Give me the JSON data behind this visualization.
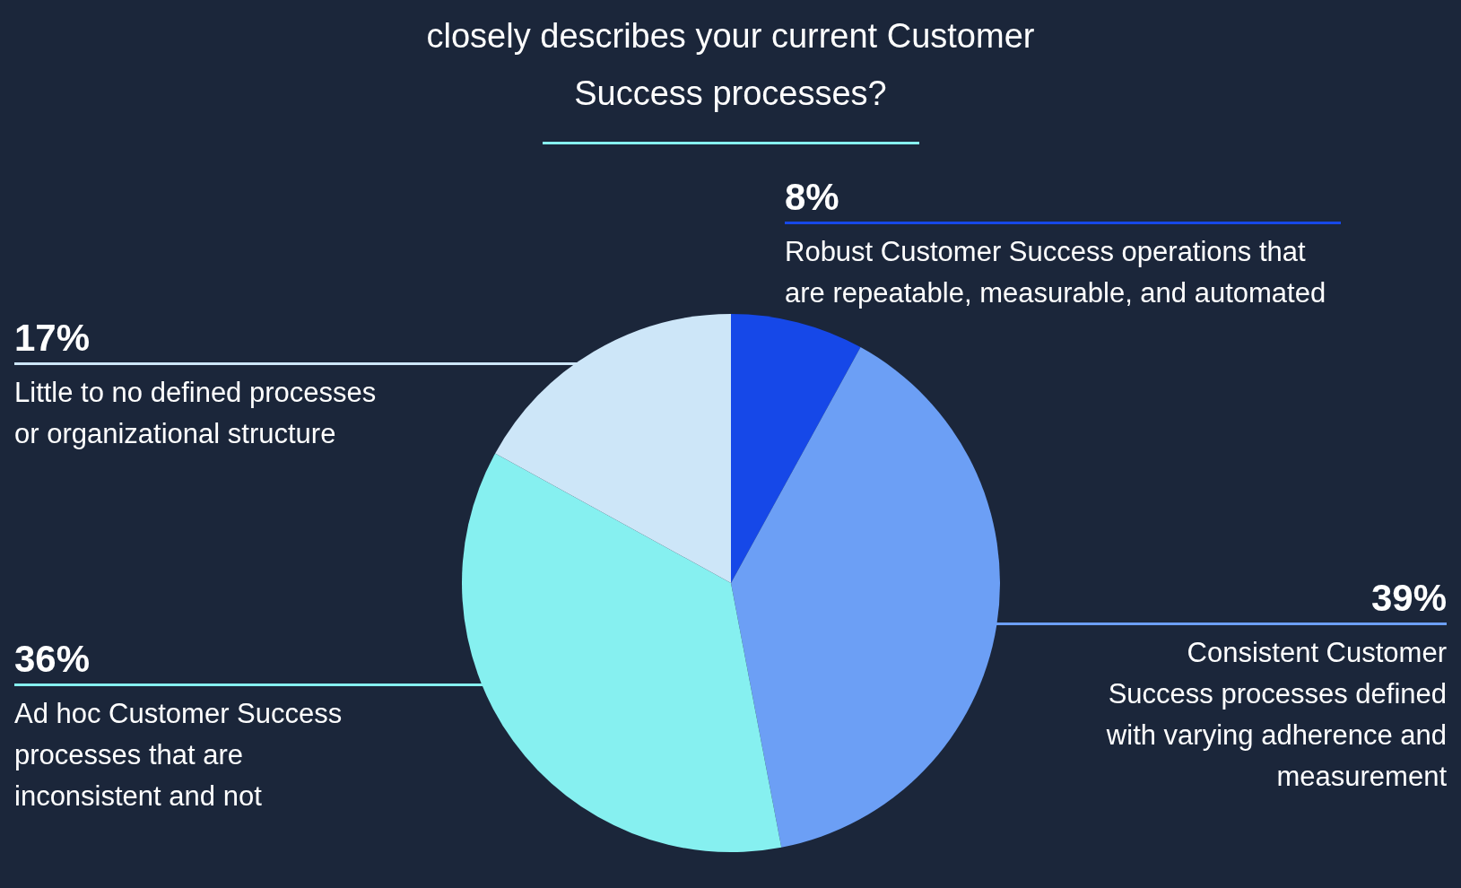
{
  "chart_data": {
    "type": "pie",
    "title": "closely describes your current Customer Success processes?",
    "categories": [
      "Robust Customer Success operations that are repeatable, measurable, and automated",
      "Consistent Customer Success processes defined with varying adherence and measurement",
      "Ad hoc Customer Success processes that are inconsistent and not",
      "Little to no defined processes or organizational structure"
    ],
    "values": [
      8,
      39,
      36,
      17
    ],
    "value_labels": [
      "8%",
      "39%",
      "36%",
      "17%"
    ],
    "colors": [
      "#1648e8",
      "#6c9ff5",
      "#86f0f0",
      "#cde6f8"
    ],
    "legend": false
  }
}
